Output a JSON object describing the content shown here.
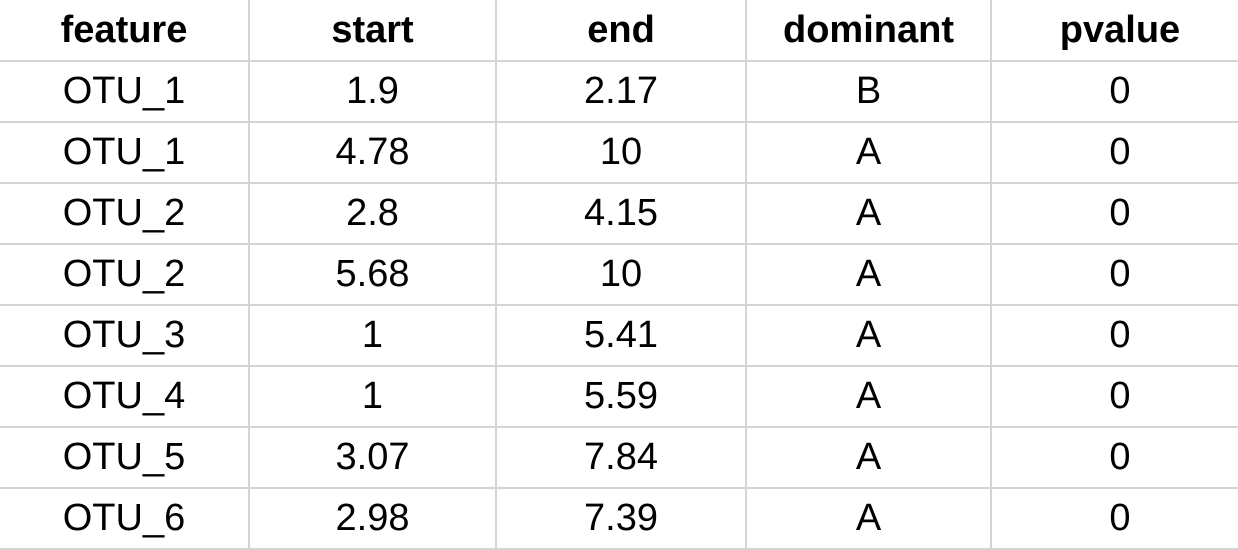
{
  "table": {
    "headers": [
      "feature",
      "start",
      "end",
      "dominant",
      "pvalue"
    ],
    "rows": [
      [
        "OTU_1",
        "1.9",
        "2.17",
        "B",
        "0"
      ],
      [
        "OTU_1",
        "4.78",
        "10",
        "A",
        "0"
      ],
      [
        "OTU_2",
        "2.8",
        "4.15",
        "A",
        "0"
      ],
      [
        "OTU_2",
        "5.68",
        "10",
        "A",
        "0"
      ],
      [
        "OTU_3",
        "1",
        "5.41",
        "A",
        "0"
      ],
      [
        "OTU_4",
        "1",
        "5.59",
        "A",
        "0"
      ],
      [
        "OTU_5",
        "3.07",
        "7.84",
        "A",
        "0"
      ],
      [
        "OTU_6",
        "2.98",
        "7.39",
        "A",
        "0"
      ]
    ]
  },
  "colors": {
    "gridline": "#d4d4d4",
    "text": "#000000",
    "background": "#ffffff"
  }
}
